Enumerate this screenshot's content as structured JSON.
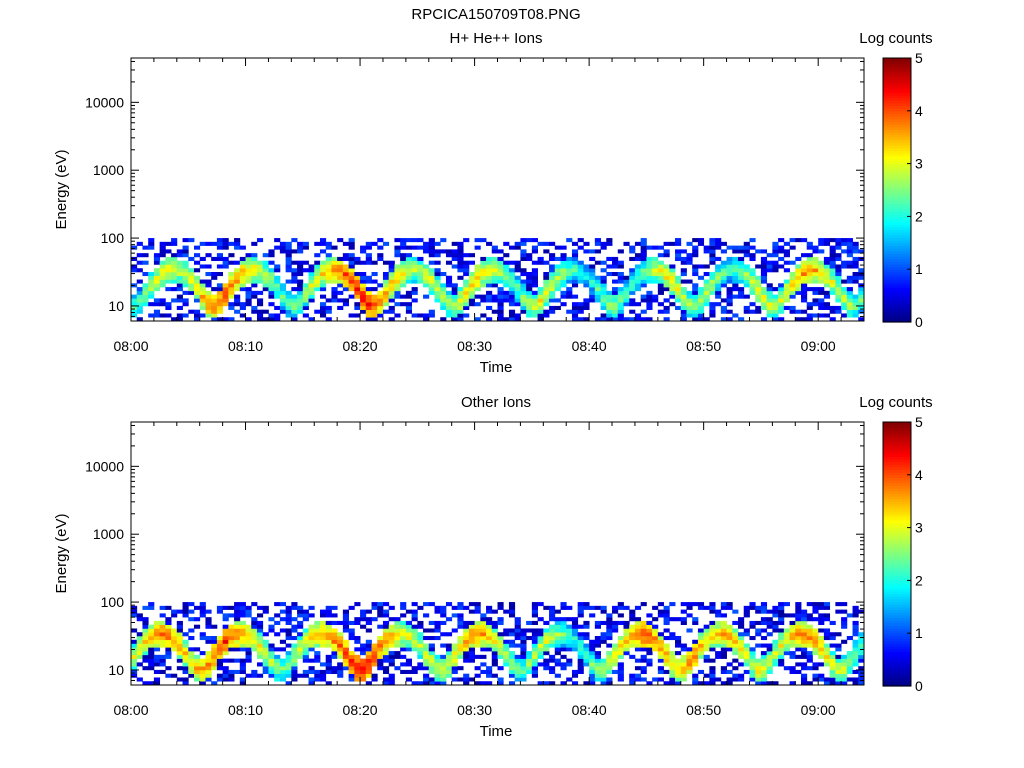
{
  "figure": {
    "title": "RPCICA150709T08.PNG"
  },
  "colorbar": {
    "label": "Log counts",
    "ticks": [
      "0",
      "1",
      "2",
      "3",
      "4",
      "5"
    ],
    "range": [
      0,
      5
    ],
    "colormap": "jet"
  },
  "chart_data": [
    {
      "type": "heatmap",
      "title": "H+ He++ Ions",
      "xlabel": "Time",
      "ylabel": "Energy (eV)",
      "x_ticks": [
        "08:00",
        "08:10",
        "08:20",
        "08:30",
        "08:40",
        "08:50",
        "09:00"
      ],
      "y_ticks": [
        "10",
        "100",
        "1000",
        "10000"
      ],
      "y_scale": "log",
      "xlim": [
        "08:00",
        "09:04"
      ],
      "ylim": [
        6,
        45000
      ],
      "band_energy_range_eV": [
        6,
        100
      ],
      "peak_log_counts": [
        {
          "time": "08:03",
          "value": 3.3
        },
        {
          "time": "08:08",
          "value": 4.2
        },
        {
          "time": "08:12",
          "value": 2.6
        },
        {
          "time": "08:16",
          "value": 3.0
        },
        {
          "time": "08:20",
          "value": 4.5
        },
        {
          "time": "08:26",
          "value": 3.2
        },
        {
          "time": "08:30",
          "value": 3.6
        },
        {
          "time": "08:36",
          "value": 3.3
        },
        {
          "time": "08:42",
          "value": 2.8
        },
        {
          "time": "08:47",
          "value": 3.4
        },
        {
          "time": "08:50",
          "value": 3.0
        },
        {
          "time": "08:55",
          "value": 3.2
        },
        {
          "time": "08:59",
          "value": 3.8
        },
        {
          "time": "09:02",
          "value": 3.0
        }
      ]
    },
    {
      "type": "heatmap",
      "title": "Other Ions",
      "xlabel": "Time",
      "ylabel": "Energy (eV)",
      "x_ticks": [
        "08:00",
        "08:10",
        "08:20",
        "08:30",
        "08:40",
        "08:50",
        "09:00"
      ],
      "y_ticks": [
        "10",
        "100",
        "1000",
        "10000"
      ],
      "y_scale": "log",
      "xlim": [
        "08:00",
        "09:04"
      ],
      "ylim": [
        6,
        45000
      ],
      "band_energy_range_eV": [
        6,
        100
      ],
      "peak_log_counts": [
        {
          "time": "08:03",
          "value": 4.0
        },
        {
          "time": "08:08",
          "value": 4.3
        },
        {
          "time": "08:12",
          "value": 2.5
        },
        {
          "time": "08:17",
          "value": 3.8
        },
        {
          "time": "08:20",
          "value": 4.6
        },
        {
          "time": "08:26",
          "value": 3.2
        },
        {
          "time": "08:30",
          "value": 3.9
        },
        {
          "time": "08:36",
          "value": 3.1
        },
        {
          "time": "08:42",
          "value": 2.9
        },
        {
          "time": "08:45",
          "value": 4.2
        },
        {
          "time": "08:49",
          "value": 3.9
        },
        {
          "time": "08:52",
          "value": 3.7
        },
        {
          "time": "08:55",
          "value": 3.3
        },
        {
          "time": "08:59",
          "value": 3.9
        },
        {
          "time": "09:02",
          "value": 3.1
        }
      ]
    }
  ]
}
